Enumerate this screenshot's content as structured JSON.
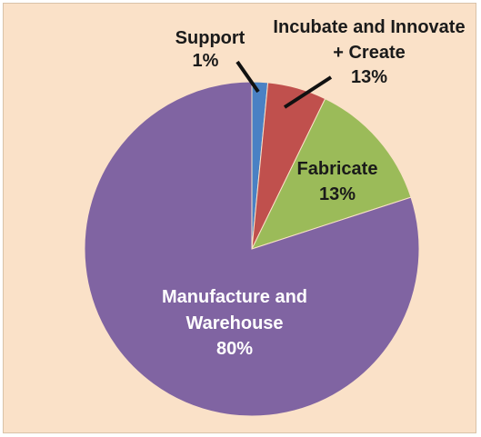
{
  "chart_data": {
    "type": "pie",
    "title": "",
    "slices": [
      {
        "label_lines": [
          "Support"
        ],
        "value_text": "1%",
        "value": 1,
        "color": "#4a81c4"
      },
      {
        "label_lines": [
          "Incubate and Innovate",
          "+ Create"
        ],
        "value_text": "13%",
        "value": 13,
        "color": "#c0504d"
      },
      {
        "label_lines": [
          "Fabricate"
        ],
        "value_text": "13%",
        "value": 13,
        "color": "#9bbb59"
      },
      {
        "label_lines": [
          "Manufacture and",
          "Warehouse"
        ],
        "value_text": "80%",
        "value": 80,
        "color": "#8064a2"
      }
    ],
    "note": ""
  }
}
